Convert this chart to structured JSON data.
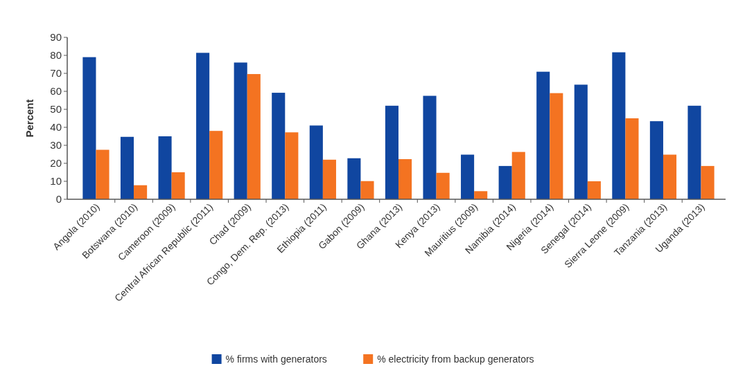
{
  "chart_data": {
    "type": "bar",
    "ylabel": "Percent",
    "categories": [
      "Angola (2010)",
      "Botswana (2010)",
      "Cameroon (2009)",
      "Central African Republic (2011)",
      "Chad (2009)",
      "Congo, Dem. Rep. (2013)",
      "Ethiopia (2011)",
      "Gabon (2009)",
      "Ghana (2013)",
      "Kenya (2013)",
      "Mauritius (2009)",
      "Namibia (2014)",
      "Nigeria (2014)",
      "Senegal (2014)",
      "Sierra Leone (2009)",
      "Tanzania (2013)",
      "Uganda (2013)"
    ],
    "series": [
      {
        "name": "% firms with generators",
        "color": "#1046a0",
        "values": [
          79,
          34.7,
          35,
          81.4,
          76,
          59.2,
          41,
          22.8,
          52,
          57.5,
          24.8,
          18.5,
          70.9,
          63.7,
          81.7,
          43.4,
          52
        ]
      },
      {
        "name": "% electricity from backup generators",
        "color": "#f47321",
        "values": [
          27.5,
          7.8,
          15,
          38,
          69.6,
          37.2,
          22,
          10.1,
          22.3,
          14.7,
          4.5,
          26.3,
          59,
          10,
          45,
          24.8,
          18.5
        ]
      }
    ],
    "ylim": [
      0,
      90
    ],
    "yticks": [
      0,
      10,
      20,
      30,
      40,
      50,
      60,
      70,
      80,
      90
    ],
    "grid": false,
    "legend": "bottom"
  }
}
